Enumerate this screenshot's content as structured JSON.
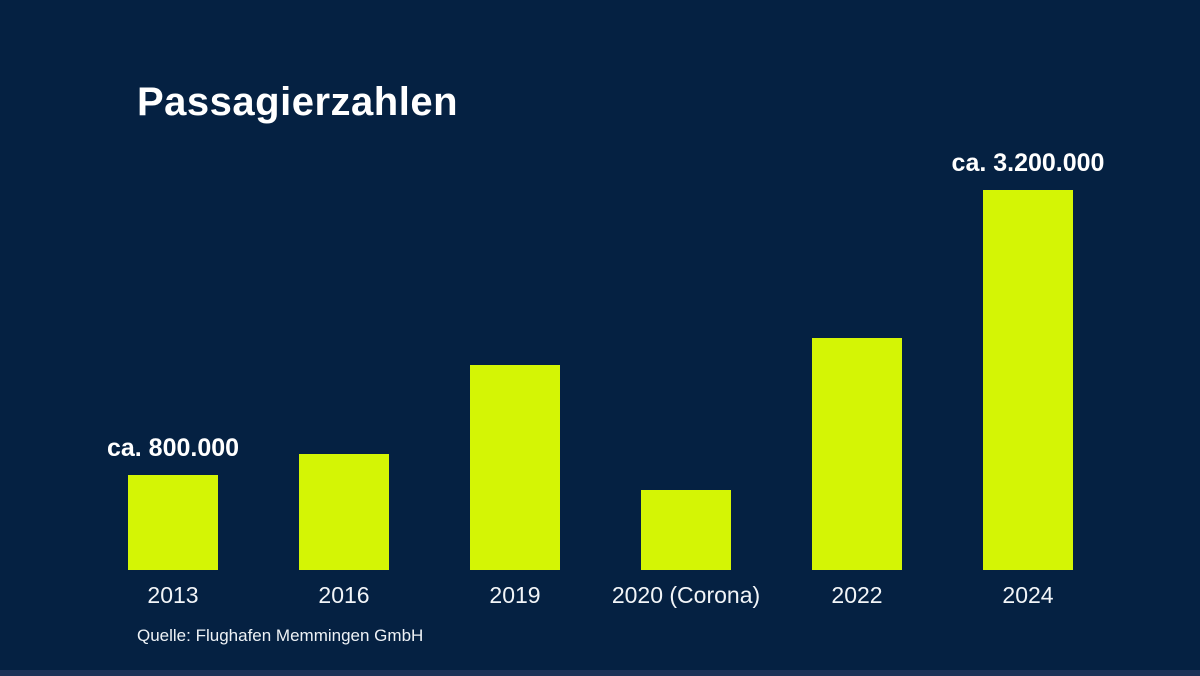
{
  "header": {
    "title": "Passagierzahlen"
  },
  "source_note": "Quelle: Flughafen Memmingen GmbH",
  "colors": {
    "background": "#052142",
    "bar": "#d4f505",
    "text": "#ffffff",
    "footer_band": "#1c3156"
  },
  "chart_data": {
    "type": "bar",
    "title": "Passagierzahlen",
    "categories": [
      "2013",
      "2016",
      "2019",
      "2020 (Corona)",
      "2022",
      "2024"
    ],
    "values": [
      800000,
      975000,
      1725000,
      675000,
      1950000,
      3200000
    ],
    "value_labels": [
      "ca. 800.000",
      "",
      "",
      "",
      "",
      "ca. 3.200.000"
    ],
    "xlabel": "",
    "ylabel": "",
    "ylim": [
      0,
      3200000
    ],
    "grid": false,
    "legend": false,
    "axis_lines": false,
    "bar_color": "#d4f505",
    "source": "Quelle: Flughafen Memmingen GmbH"
  }
}
